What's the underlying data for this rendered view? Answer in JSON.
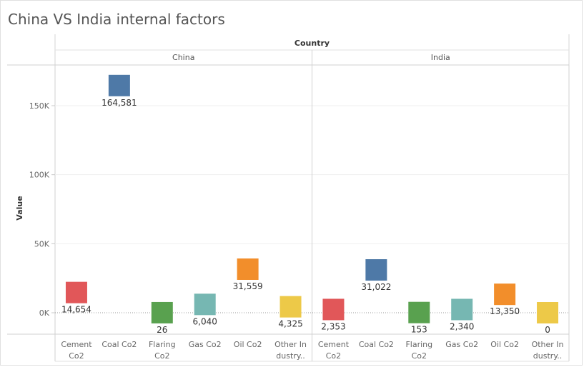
{
  "title": "China VS India internal factors",
  "colors": {
    "Cement Co2": "#e15759",
    "Coal Co2": "#4e79a7",
    "Flaring Co2": "#59a14f",
    "Gas Co2": "#76b7b2",
    "Oil Co2": "#f28e2b",
    "Other Industry": "#edc948"
  },
  "chart_data": {
    "type": "scatter",
    "title": "China VS India internal factors",
    "header": "Country",
    "ylabel": "Value",
    "ylim": [
      -15000,
      180000
    ],
    "yticks": [
      0,
      50000,
      100000,
      150000
    ],
    "ytick_labels": [
      "0K",
      "50K",
      "100K",
      "150K"
    ],
    "categories": [
      "Cement Co2",
      "Coal Co2",
      "Flaring Co2",
      "Gas Co2",
      "Oil Co2",
      "Other Industry"
    ],
    "category_labels": [
      [
        "Cement",
        "Co2"
      ],
      [
        "Coal Co2"
      ],
      [
        "Flaring",
        "Co2"
      ],
      [
        "Gas Co2"
      ],
      [
        "Oil Co2"
      ],
      [
        "Other In",
        "dustry.."
      ]
    ],
    "panels": [
      {
        "name": "China",
        "values": [
          14654,
          164581,
          26,
          6040,
          31559,
          4325
        ],
        "labels": [
          "14,654",
          "164,581",
          "26",
          "6,040",
          "31,559",
          "4,325"
        ]
      },
      {
        "name": "India",
        "values": [
          2353,
          31022,
          153,
          2340,
          13350,
          0
        ],
        "labels": [
          "2,353",
          "31,022",
          "153",
          "2,340",
          "13,350",
          "0"
        ]
      }
    ]
  }
}
